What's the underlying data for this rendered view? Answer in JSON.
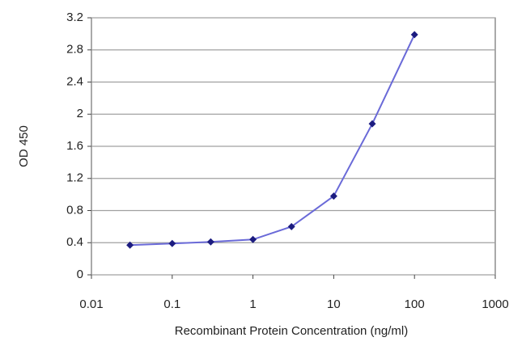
{
  "chart_data": {
    "type": "line",
    "x_label": "Recombinant Protein Concentration (ng/ml)",
    "y_label": "OD 450",
    "x": [
      0.03,
      0.1,
      0.3,
      1,
      3,
      10,
      30,
      100
    ],
    "values": [
      0.37,
      0.39,
      0.41,
      0.44,
      0.6,
      0.98,
      1.88,
      2.99
    ],
    "color": "#6a6ad8",
    "marker_color": "#1c1c80",
    "xscale": "log",
    "xlim": [
      0.01,
      1000
    ],
    "xticks": [
      0.01,
      0.1,
      1,
      10,
      100,
      1000
    ],
    "ylim": [
      0,
      3.2
    ],
    "yticks": [
      0,
      0.4,
      0.8,
      1.2,
      1.6,
      2,
      2.4,
      2.8,
      3.2
    ],
    "grid": true
  }
}
